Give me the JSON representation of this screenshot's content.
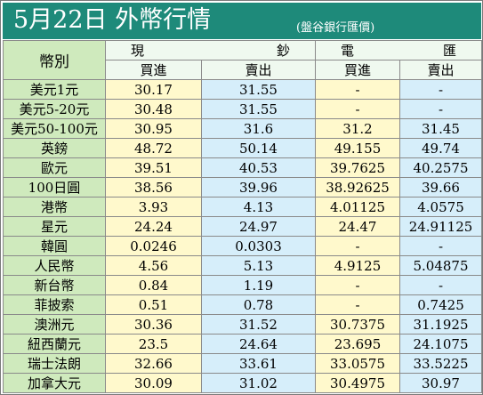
{
  "header": {
    "title": "5月22日 外幣行情",
    "source": "(盤谷銀行匯價)"
  },
  "table": {
    "currency_header": "幣別",
    "groups": [
      {
        "label": "現　鈔",
        "chars": [
          "現",
          "鈔"
        ]
      },
      {
        "label": "電　匯",
        "chars": [
          "電",
          "匯"
        ]
      }
    ],
    "sub_headers": [
      "買進",
      "賣出",
      "買進",
      "賣出"
    ],
    "rows": [
      {
        "currency": "美元1元",
        "cash_buy": "30.17",
        "cash_sell": "31.55",
        "tt_buy": "-",
        "tt_sell": "-"
      },
      {
        "currency": "美元5-20元",
        "cash_buy": "30.48",
        "cash_sell": "31.55",
        "tt_buy": "-",
        "tt_sell": "-"
      },
      {
        "currency": "美元50-100元",
        "cash_buy": "30.95",
        "cash_sell": "31.6",
        "tt_buy": "31.2",
        "tt_sell": "31.45"
      },
      {
        "currency": "英鎊",
        "cash_buy": "48.72",
        "cash_sell": "50.14",
        "tt_buy": "49.155",
        "tt_sell": "49.74"
      },
      {
        "currency": "歐元",
        "cash_buy": "39.51",
        "cash_sell": "40.53",
        "tt_buy": "39.7625",
        "tt_sell": "40.2575"
      },
      {
        "currency": "100日圓",
        "cash_buy": "38.56",
        "cash_sell": "39.96",
        "tt_buy": "38.92625",
        "tt_sell": "39.66"
      },
      {
        "currency": "港幣",
        "cash_buy": "3.93",
        "cash_sell": "4.13",
        "tt_buy": "4.01125",
        "tt_sell": "4.0575"
      },
      {
        "currency": "星元",
        "cash_buy": "24.24",
        "cash_sell": "24.97",
        "tt_buy": "24.47",
        "tt_sell": "24.91125"
      },
      {
        "currency": "韓圓",
        "cash_buy": "0.0246",
        "cash_sell": "0.0303",
        "tt_buy": "-",
        "tt_sell": "-"
      },
      {
        "currency": "人民幣",
        "cash_buy": "4.56",
        "cash_sell": "5.13",
        "tt_buy": "4.9125",
        "tt_sell": "5.04875"
      },
      {
        "currency": "新台幣",
        "cash_buy": "0.84",
        "cash_sell": "1.19",
        "tt_buy": "-",
        "tt_sell": "-"
      },
      {
        "currency": "菲披索",
        "cash_buy": "0.51",
        "cash_sell": "0.78",
        "tt_buy": "-",
        "tt_sell": "0.7425"
      },
      {
        "currency": "澳洲元",
        "cash_buy": "30.36",
        "cash_sell": "31.52",
        "tt_buy": "30.7375",
        "tt_sell": "31.1925"
      },
      {
        "currency": "紐西蘭元",
        "cash_buy": "23.5",
        "cash_sell": "24.64",
        "tt_buy": "23.695",
        "tt_sell": "24.1075"
      },
      {
        "currency": "瑞士法朗",
        "cash_buy": "32.66",
        "cash_sell": "33.61",
        "tt_buy": "33.0575",
        "tt_sell": "33.5225"
      },
      {
        "currency": "加拿大元",
        "cash_buy": "30.09",
        "cash_sell": "31.02",
        "tt_buy": "30.4975",
        "tt_sell": "30.97"
      }
    ]
  },
  "colors": {
    "title_bar": "#1e8a7a",
    "currency_column": "#cfeabd",
    "buy_column": "#fff9cc",
    "sell_column": "#d6eefa",
    "header_cells": "#eff9ef"
  }
}
